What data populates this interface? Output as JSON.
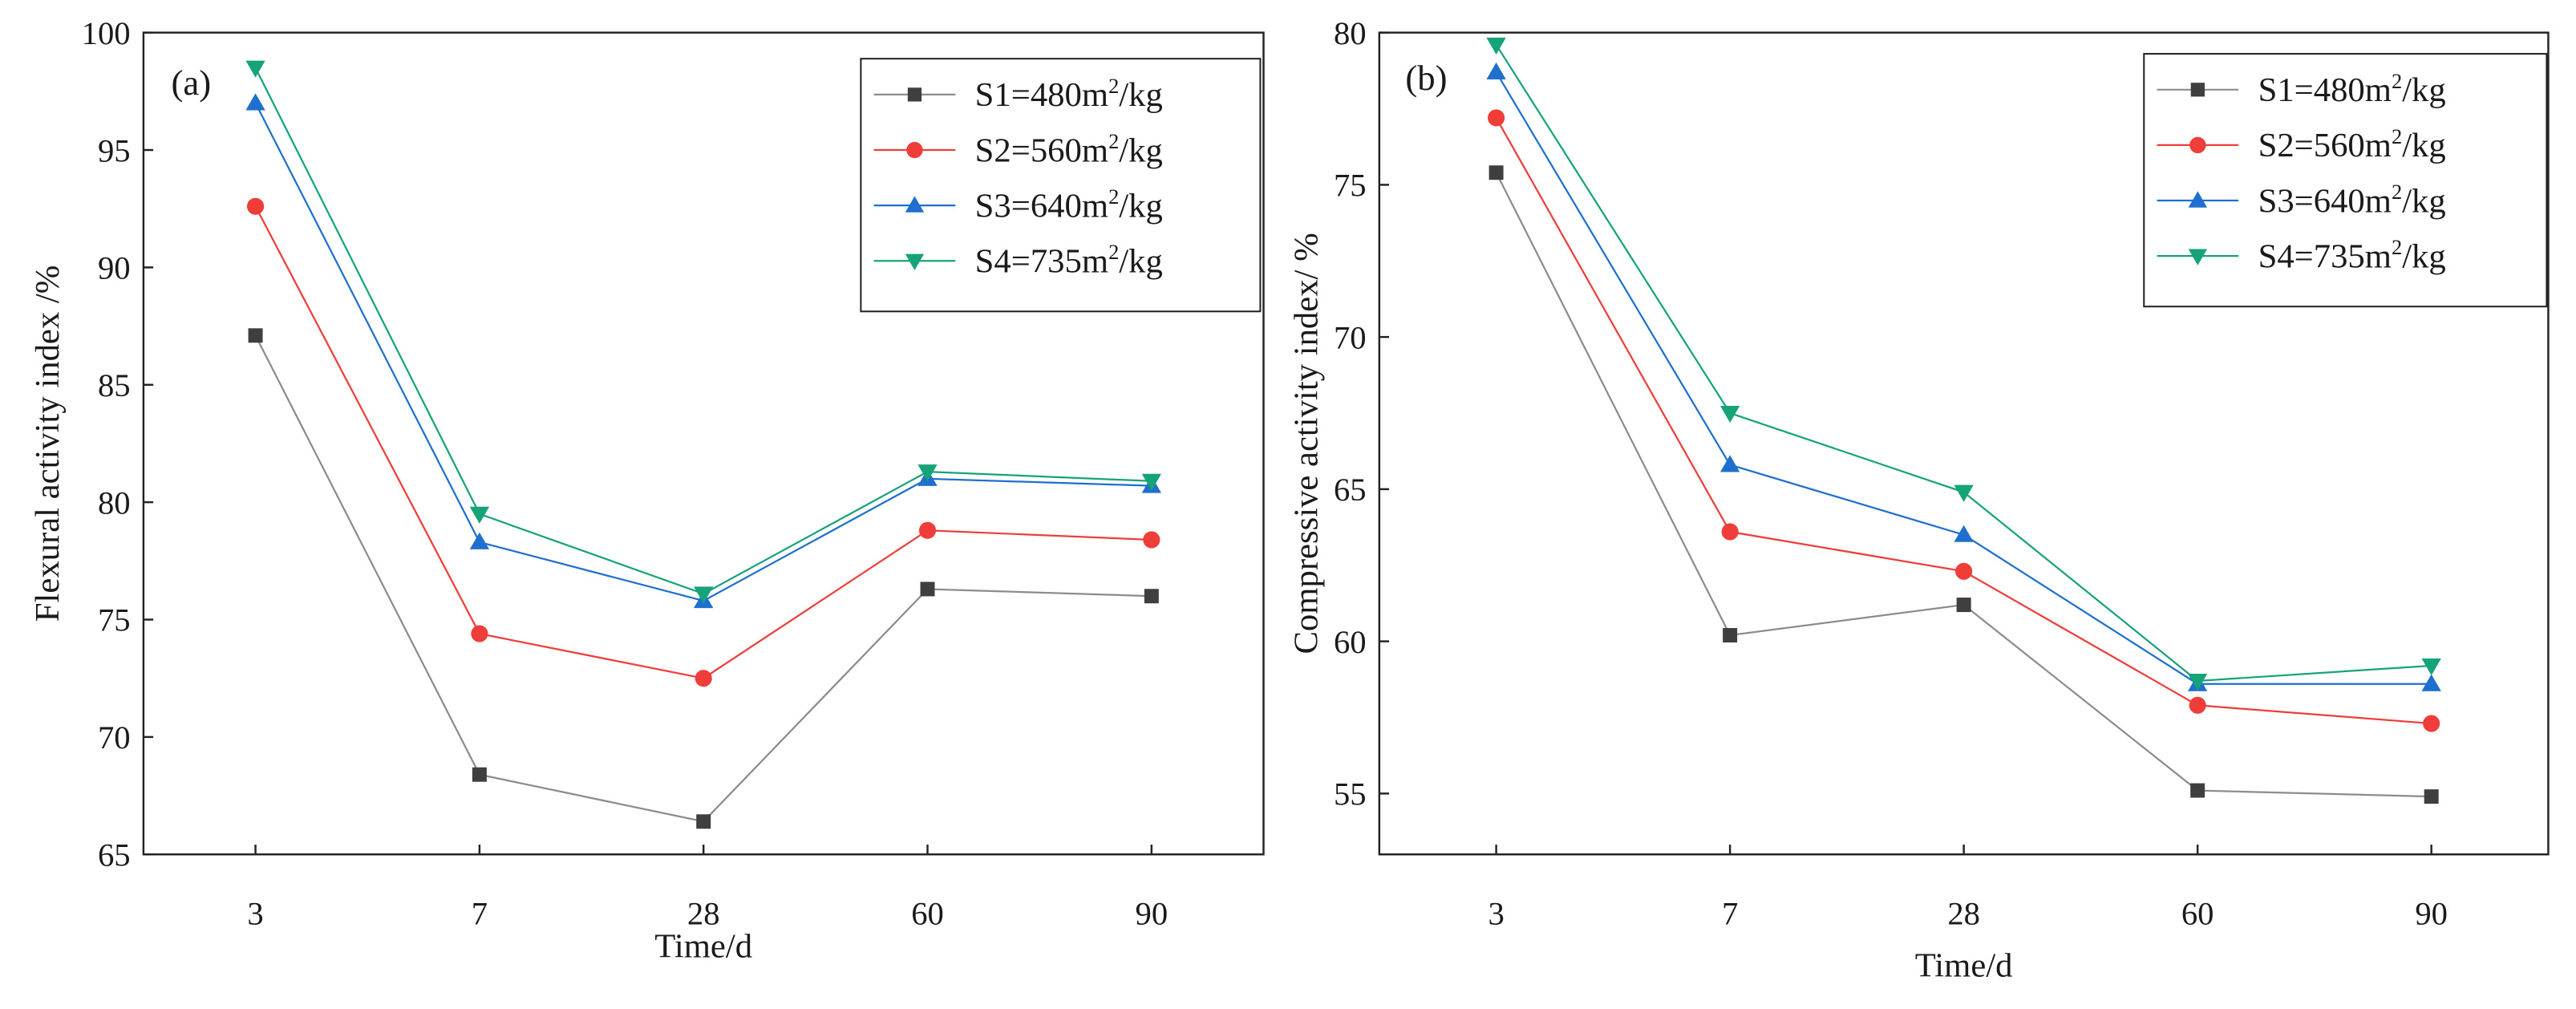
{
  "chart_data": [
    {
      "type": "line",
      "panel_label": "(a)",
      "title": "",
      "xlabel": "Time/d",
      "ylabel": "Flexural activity index /%",
      "categories": [
        "3",
        "7",
        "28",
        "60",
        "90"
      ],
      "ylim": [
        65,
        100
      ],
      "yticks": [
        65,
        70,
        75,
        80,
        85,
        90,
        95,
        100
      ],
      "grid": false,
      "legend_position": "top-right",
      "series": [
        {
          "name": "S1=480m²/kg",
          "label_prefix": "S1=480m",
          "label_sup": "2",
          "label_suffix": "/kg",
          "marker": "square",
          "color": "#3f3f3f",
          "line_color": "#8c8c8c",
          "values": [
            87.1,
            68.4,
            66.4,
            76.3,
            76.0
          ]
        },
        {
          "name": "S2=560m²/kg",
          "label_prefix": "S2=560m",
          "label_sup": "2",
          "label_suffix": "/kg",
          "marker": "circle",
          "color": "#ef3e3a",
          "line_color": "#ef3e3a",
          "values": [
            92.6,
            74.4,
            72.5,
            78.8,
            78.4
          ]
        },
        {
          "name": "S3=640m²/kg",
          "label_prefix": "S3=640m",
          "label_sup": "2",
          "label_suffix": "/kg",
          "marker": "triangle-up",
          "color": "#1f6fce",
          "line_color": "#1f6fce",
          "values": [
            97.0,
            78.3,
            75.8,
            81.0,
            80.7
          ]
        },
        {
          "name": "S4=735m²/kg",
          "label_prefix": "S4=735m",
          "label_sup": "2",
          "label_suffix": "/kg",
          "marker": "triangle-down",
          "color": "#16a37a",
          "line_color": "#16a37a",
          "values": [
            98.5,
            79.5,
            76.1,
            81.3,
            80.9
          ]
        }
      ]
    },
    {
      "type": "line",
      "panel_label": "(b)",
      "title": "",
      "xlabel": "Time/d",
      "ylabel": "Compressive activity index/ %",
      "categories": [
        "3",
        "7",
        "28",
        "60",
        "90"
      ],
      "ylim": [
        53,
        80
      ],
      "yticks": [
        55,
        60,
        65,
        70,
        75,
        80
      ],
      "grid": false,
      "legend_position": "top-right",
      "series": [
        {
          "name": "S1=480m²/kg",
          "label_prefix": "S1=480m",
          "label_sup": "2",
          "label_suffix": "/kg",
          "marker": "square",
          "color": "#3f3f3f",
          "line_color": "#8c8c8c",
          "values": [
            75.4,
            60.2,
            61.2,
            55.1,
            54.9
          ]
        },
        {
          "name": "S2=560m²/kg",
          "label_prefix": "S2=560m",
          "label_sup": "2",
          "label_suffix": "/kg",
          "marker": "circle",
          "color": "#ef3e3a",
          "line_color": "#ef3e3a",
          "values": [
            77.2,
            63.6,
            62.3,
            57.9,
            57.3
          ]
        },
        {
          "name": "S3=640m²/kg",
          "label_prefix": "S3=640m",
          "label_sup": "2",
          "label_suffix": "/kg",
          "marker": "triangle-up",
          "color": "#1f6fce",
          "line_color": "#1f6fce",
          "values": [
            78.7,
            65.8,
            63.5,
            58.6,
            58.6
          ]
        },
        {
          "name": "S4=735m²/kg",
          "label_prefix": "S4=735m",
          "label_sup": "2",
          "label_suffix": "/kg",
          "marker": "triangle-down",
          "color": "#16a37a",
          "line_color": "#16a37a",
          "values": [
            79.6,
            67.5,
            64.9,
            58.7,
            59.2
          ]
        }
      ]
    }
  ]
}
